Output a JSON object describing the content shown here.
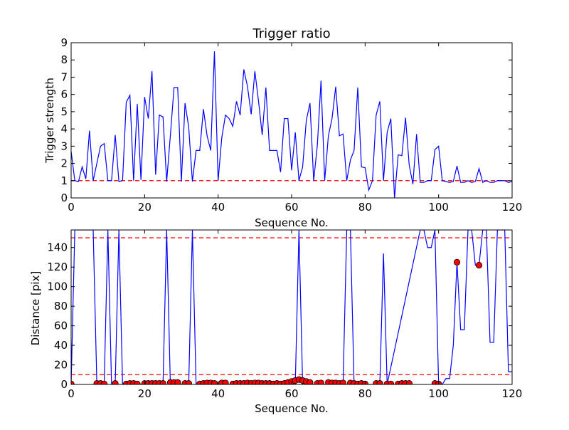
{
  "colors": {
    "line": "#0000ff",
    "threshold": "#ff0000",
    "marker_fill": "#ff0000",
    "marker_edge": "#000000"
  },
  "chart_data": [
    {
      "type": "line",
      "title": "Trigger ratio",
      "xlabel": "Sequence No.",
      "ylabel": "Trigger strength",
      "xlim": [
        0,
        120
      ],
      "ylim": [
        0,
        9
      ],
      "xticks": [
        0,
        20,
        40,
        60,
        80,
        100,
        120
      ],
      "yticks": [
        0,
        1,
        2,
        3,
        4,
        5,
        6,
        7,
        8,
        9
      ],
      "threshold": 1.0,
      "series": [
        {
          "x": [
            0,
            1,
            2,
            3,
            4,
            5,
            6,
            7,
            8,
            9,
            10,
            11,
            12,
            13,
            14,
            15,
            16,
            17,
            18,
            19,
            20,
            21,
            22,
            23,
            24,
            25,
            26,
            27,
            28,
            29,
            30,
            31,
            32,
            33,
            34,
            35,
            36,
            37,
            38,
            39,
            40,
            41,
            42,
            43,
            44,
            45,
            46,
            47,
            48,
            49,
            50,
            51,
            52,
            53,
            54,
            55,
            56,
            57,
            58,
            59,
            60,
            61,
            62,
            63,
            64,
            65,
            66,
            67,
            68,
            69,
            70,
            71,
            72,
            73,
            74,
            75,
            76,
            77,
            78,
            79,
            80,
            81,
            82,
            83,
            84,
            85,
            86,
            87,
            88,
            89,
            90,
            91,
            92,
            93,
            94,
            95,
            96,
            97,
            98,
            99,
            100,
            101,
            102,
            103,
            104,
            105,
            106,
            107,
            108,
            109,
            110,
            111,
            112,
            113,
            114,
            115,
            116,
            117,
            118,
            119,
            120
          ],
          "y": [
            2.7,
            1.0,
            0.95,
            1.8,
            1.1,
            3.9,
            1.0,
            2.0,
            3.0,
            3.15,
            1.0,
            1.0,
            3.65,
            0.95,
            1.0,
            5.55,
            5.95,
            1.0,
            5.45,
            1.05,
            5.85,
            4.6,
            7.35,
            1.35,
            4.8,
            4.7,
            0.95,
            3.6,
            6.4,
            6.4,
            0.95,
            5.5,
            4.1,
            0.95,
            2.75,
            2.75,
            5.15,
            3.6,
            2.75,
            8.5,
            1.0,
            3.5,
            4.8,
            4.6,
            4.15,
            5.6,
            4.8,
            7.45,
            6.45,
            4.85,
            7.35,
            5.6,
            3.65,
            6.4,
            2.75,
            2.75,
            2.75,
            1.5,
            4.6,
            4.6,
            1.6,
            3.8,
            1.0,
            1.8,
            4.5,
            5.5,
            1.0,
            3.05,
            6.8,
            1.0,
            3.6,
            4.6,
            6.45,
            3.6,
            3.7,
            1.0,
            2.2,
            2.75,
            6.4,
            1.8,
            1.75,
            0.45,
            1.0,
            4.8,
            5.6,
            1.0,
            3.8,
            4.6,
            0.0,
            2.5,
            2.45,
            4.65,
            1.9,
            0.8,
            3.7,
            0.9,
            0.9,
            1.0,
            1.0,
            2.8,
            3.0,
            1.0,
            0.95,
            0.9,
            0.95,
            1.85,
            0.9,
            0.9,
            1.0,
            0.9,
            0.95,
            1.7,
            0.9,
            1.0,
            0.9,
            0.9,
            1.0,
            1.0,
            1.0,
            0.9,
            0.95
          ]
        }
      ]
    },
    {
      "type": "line",
      "xlabel": "Sequence No.",
      "ylabel": "Distance [pix]",
      "xlim": [
        0,
        120
      ],
      "ylim": [
        0,
        158
      ],
      "xticks": [
        0,
        20,
        40,
        60,
        80,
        100,
        120
      ],
      "yticks": [
        0,
        20,
        40,
        60,
        80,
        100,
        120,
        140
      ],
      "thresholds": [
        10,
        150
      ],
      "series": [
        {
          "x": [
            0,
            1,
            6,
            7,
            8,
            9,
            10,
            11,
            12,
            13,
            14,
            25,
            26,
            27,
            32,
            33,
            34,
            61,
            62,
            63,
            74,
            75,
            76,
            77,
            84,
            85,
            86,
            95,
            96,
            97,
            98,
            99,
            100,
            101,
            102,
            103,
            104,
            105,
            106,
            107,
            108,
            109,
            110,
            111,
            112,
            113,
            114,
            115,
            116,
            117,
            118,
            119,
            120
          ],
          "y": [
            0,
            158,
            158,
            0,
            0,
            0,
            158,
            0,
            0,
            158,
            0,
            0,
            158,
            0,
            0,
            158,
            0,
            0,
            158,
            0,
            0,
            158,
            158,
            0,
            0,
            134,
            0,
            158,
            158,
            140,
            140,
            158,
            0,
            0,
            6,
            6,
            40,
            125,
            56,
            56,
            158,
            158,
            122,
            122,
            158,
            158,
            43,
            43,
            158,
            158,
            158,
            13,
            13
          ]
        },
        {
          "markers": true,
          "x": [
            0,
            7,
            8,
            9,
            12,
            15,
            16,
            17,
            18,
            20,
            21,
            22,
            23,
            24,
            25,
            27,
            28,
            29,
            31,
            32,
            35,
            36,
            37,
            38,
            39,
            41,
            42,
            44,
            45,
            46,
            47,
            48,
            49,
            50,
            51,
            52,
            53,
            54,
            55,
            56,
            57,
            58,
            59,
            60,
            61,
            62,
            63,
            64,
            65,
            67,
            68,
            70,
            71,
            72,
            73,
            74,
            76,
            77,
            78,
            79,
            80,
            83,
            84,
            86,
            87,
            89,
            90,
            91,
            92,
            99,
            100,
            105,
            111
          ],
          "y": [
            0.5,
            1,
            1,
            0.5,
            1,
            0.5,
            1,
            1,
            0.5,
            1,
            1,
            1,
            1,
            1,
            1,
            2,
            2,
            2,
            1,
            1,
            0.5,
            1,
            1.5,
            1.5,
            1,
            1.5,
            1.5,
            0.5,
            1,
            1,
            1,
            1.5,
            1,
            1.5,
            1.5,
            1,
            1,
            1,
            0.5,
            1,
            0.5,
            1,
            2,
            3,
            4,
            5,
            4,
            3,
            2,
            1,
            1.5,
            2,
            1.5,
            1.5,
            1,
            1.5,
            1.5,
            1,
            0.5,
            1,
            0.5,
            1,
            1,
            0.5,
            0.5,
            0.5,
            1,
            1,
            1,
            1,
            0.5,
            125,
            122
          ]
        }
      ]
    }
  ]
}
